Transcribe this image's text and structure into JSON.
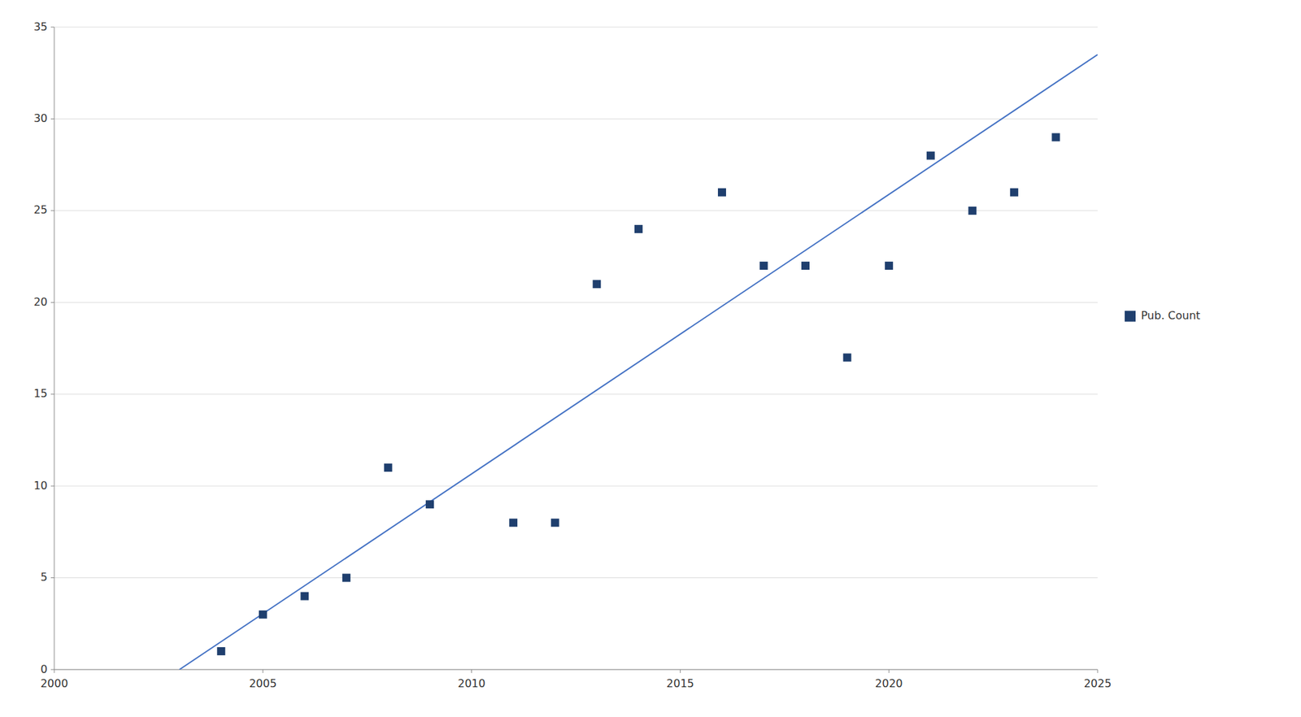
{
  "chart_data": {
    "type": "scatter",
    "x": [
      2004,
      2005,
      2006,
      2007,
      2008,
      2009,
      2011,
      2012,
      2013,
      2014,
      2016,
      2017,
      2018,
      2019,
      2020,
      2021,
      2022,
      2023,
      2024
    ],
    "series": [
      {
        "name": "Pub. Count",
        "color": "#1F3F6E",
        "marker": "square",
        "values": [
          1,
          3,
          4,
          5,
          11,
          9,
          8,
          8,
          21,
          24,
          26,
          22,
          22,
          17,
          22,
          28,
          25,
          26,
          29
        ]
      },
      {
        "type": "line",
        "color": "#4472C4",
        "line_style": "solid",
        "x": [
          2003.0,
          2025.0
        ],
        "values": [
          0.0,
          33.5
        ]
      }
    ],
    "xlim": [
      2000,
      2025
    ],
    "ylim": [
      0,
      35
    ],
    "xticks": [
      2000,
      2005,
      2010,
      2015,
      2020,
      2025
    ],
    "yticks": [
      0,
      5,
      10,
      15,
      20,
      25,
      30,
      35
    ],
    "grid": "y",
    "legend": "right"
  }
}
